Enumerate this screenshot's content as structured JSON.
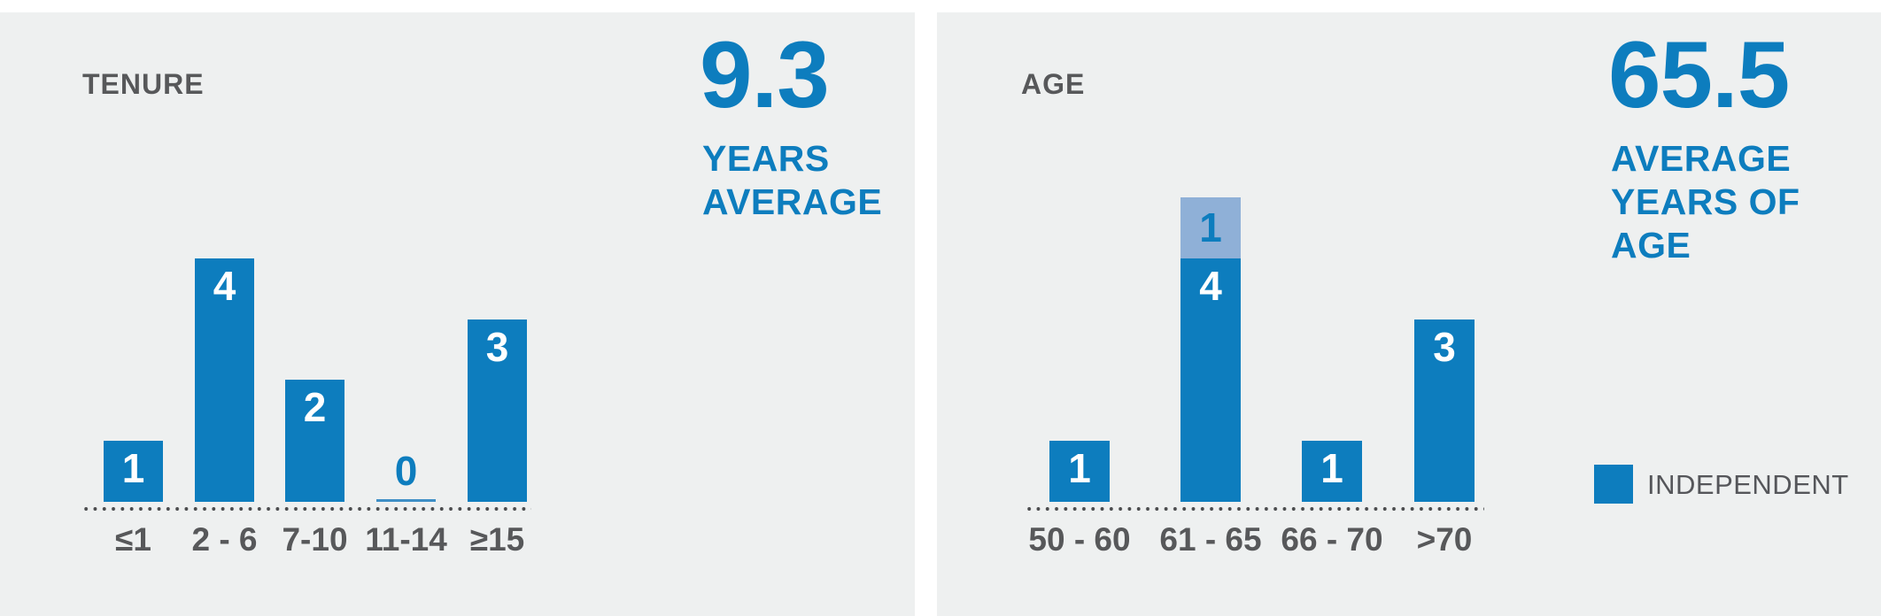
{
  "page": {
    "background": "#ffffff",
    "panel_background": "#eef0f0"
  },
  "colors": {
    "primary_blue": "#0d7dbe",
    "light_blue": "#8fb0d7",
    "text_gray": "#57585a",
    "dot_gray": "#4b4c4e",
    "value_label_white": "#ffffff"
  },
  "chart_data": [
    {
      "type": "bar",
      "title": "TENURE",
      "categories": [
        "≤1",
        "2 - 6",
        "7-10",
        "11-14",
        "≥15"
      ],
      "values": [
        1,
        4,
        2,
        0,
        3
      ],
      "value_labels": [
        "1",
        "4",
        "2",
        "0",
        "3"
      ],
      "stat": {
        "value": "9.3",
        "label": "YEARS\nAVERAGE"
      },
      "ylim": [
        0,
        5
      ],
      "grid": false,
      "axis_style": "dotted-baseline",
      "bar_color": "#0d7dbe"
    },
    {
      "type": "stacked-bar",
      "title": "AGE",
      "categories": [
        "50 - 60",
        "61 - 65",
        "66 - 70",
        ">70"
      ],
      "series": [
        {
          "name": "INDEPENDENT",
          "color": "#0d7dbe",
          "values": [
            1,
            4,
            1,
            3
          ]
        },
        {
          "name": "",
          "color": "#8fb0d7",
          "values": [
            0,
            1,
            0,
            0
          ]
        }
      ],
      "stat": {
        "value": "65.5",
        "label": "AVERAGE\nYEARS OF\nAGE"
      },
      "legend": {
        "position": "right",
        "entries": [
          {
            "label": "INDEPENDENT",
            "color": "#0d7dbe"
          }
        ]
      },
      "ylim": [
        0,
        5
      ],
      "grid": false,
      "axis_style": "dotted-baseline"
    }
  ]
}
